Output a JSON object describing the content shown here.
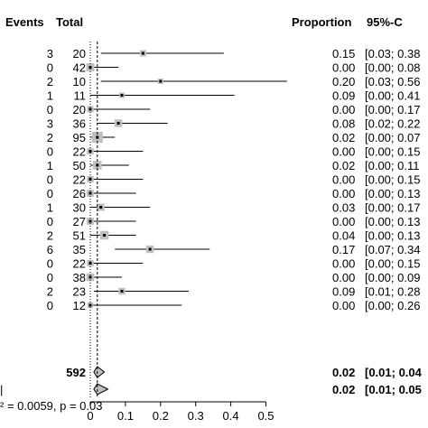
{
  "chart_data": {
    "type": "forest",
    "headers": {
      "events": "Events",
      "total": "Total",
      "proportion": "Proportion",
      "ci": "95%-C"
    },
    "studies": [
      {
        "events": "3",
        "total": "20",
        "proportion": 0.15,
        "lower": 0.03,
        "upper": 0.38,
        "prop_text": "0.15",
        "ci_text": "[0.03; 0.38"
      },
      {
        "events": "0",
        "total": "42",
        "proportion": 0.0,
        "lower": 0.0,
        "upper": 0.08,
        "prop_text": "0.00",
        "ci_text": "[0.00; 0.08"
      },
      {
        "events": "2",
        "total": "10",
        "proportion": 0.2,
        "lower": 0.03,
        "upper": 0.56,
        "prop_text": "0.20",
        "ci_text": "[0.03; 0.56"
      },
      {
        "events": "1",
        "total": "11",
        "proportion": 0.09,
        "lower": 0.0,
        "upper": 0.41,
        "prop_text": "0.09",
        "ci_text": "[0.00; 0.41"
      },
      {
        "events": "0",
        "total": "20",
        "proportion": 0.0,
        "lower": 0.0,
        "upper": 0.17,
        "prop_text": "0.00",
        "ci_text": "[0.00; 0.17"
      },
      {
        "events": "3",
        "total": "36",
        "proportion": 0.08,
        "lower": 0.02,
        "upper": 0.22,
        "prop_text": "0.08",
        "ci_text": "[0.02; 0.22"
      },
      {
        "events": "2",
        "total": "95",
        "proportion": 0.02,
        "lower": 0.0,
        "upper": 0.07,
        "prop_text": "0.02",
        "ci_text": "[0.00; 0.07"
      },
      {
        "events": "0",
        "total": "22",
        "proportion": 0.0,
        "lower": 0.0,
        "upper": 0.15,
        "prop_text": "0.00",
        "ci_text": "[0.00; 0.15"
      },
      {
        "events": "1",
        "total": "50",
        "proportion": 0.02,
        "lower": 0.0,
        "upper": 0.11,
        "prop_text": "0.02",
        "ci_text": "[0.00; 0.11"
      },
      {
        "events": "0",
        "total": "22",
        "proportion": 0.0,
        "lower": 0.0,
        "upper": 0.15,
        "prop_text": "0.00",
        "ci_text": "[0.00; 0.15"
      },
      {
        "events": "0",
        "total": "26",
        "proportion": 0.0,
        "lower": 0.0,
        "upper": 0.13,
        "prop_text": "0.00",
        "ci_text": "[0.00; 0.13"
      },
      {
        "events": "1",
        "total": "30",
        "proportion": 0.03,
        "lower": 0.0,
        "upper": 0.17,
        "prop_text": "0.03",
        "ci_text": "[0.00; 0.17"
      },
      {
        "events": "0",
        "total": "27",
        "proportion": 0.0,
        "lower": 0.0,
        "upper": 0.13,
        "prop_text": "0.00",
        "ci_text": "[0.00; 0.13"
      },
      {
        "events": "2",
        "total": "51",
        "proportion": 0.04,
        "lower": 0.0,
        "upper": 0.13,
        "prop_text": "0.04",
        "ci_text": "[0.00; 0.13"
      },
      {
        "events": "6",
        "total": "35",
        "proportion": 0.17,
        "lower": 0.07,
        "upper": 0.34,
        "prop_text": "0.17",
        "ci_text": "[0.07; 0.34"
      },
      {
        "events": "0",
        "total": "22",
        "proportion": 0.0,
        "lower": 0.0,
        "upper": 0.15,
        "prop_text": "0.00",
        "ci_text": "[0.00; 0.15"
      },
      {
        "events": "0",
        "total": "38",
        "proportion": 0.0,
        "lower": 0.0,
        "upper": 0.09,
        "prop_text": "0.00",
        "ci_text": "[0.00; 0.09"
      },
      {
        "events": "2",
        "total": "23",
        "proportion": 0.09,
        "lower": 0.01,
        "upper": 0.28,
        "prop_text": "0.09",
        "ci_text": "[0.01; 0.28"
      },
      {
        "events": "0",
        "total": "12",
        "proportion": 0.0,
        "lower": 0.0,
        "upper": 0.26,
        "prop_text": "0.00",
        "ci_text": "[0.00; 0.26"
      }
    ],
    "summaries": [
      {
        "total": "592",
        "proportion": 0.02,
        "lower": 0.01,
        "upper": 0.04,
        "prop_text": "0.02",
        "ci_text": "[0.01; 0.04"
      },
      {
        "total": "",
        "proportion": 0.02,
        "lower": 0.01,
        "upper": 0.05,
        "prop_text": "0.02",
        "ci_text": "[0.01; 0.05"
      }
    ],
    "heterogeneity_text": "² = 0.0059, p = 0.03",
    "heterogeneity_left": "|",
    "x_ticks": [
      0,
      0.1,
      0.2,
      0.3,
      0.4,
      0.5
    ],
    "x_tick_labels": [
      "0",
      "0.1",
      "0.2",
      "0.3",
      "0.4",
      "0.5"
    ],
    "xlim": [
      0,
      0.5
    ],
    "reference_line": 0.02,
    "colors": {
      "box": "#c0c0c0",
      "line": "#000000"
    }
  }
}
